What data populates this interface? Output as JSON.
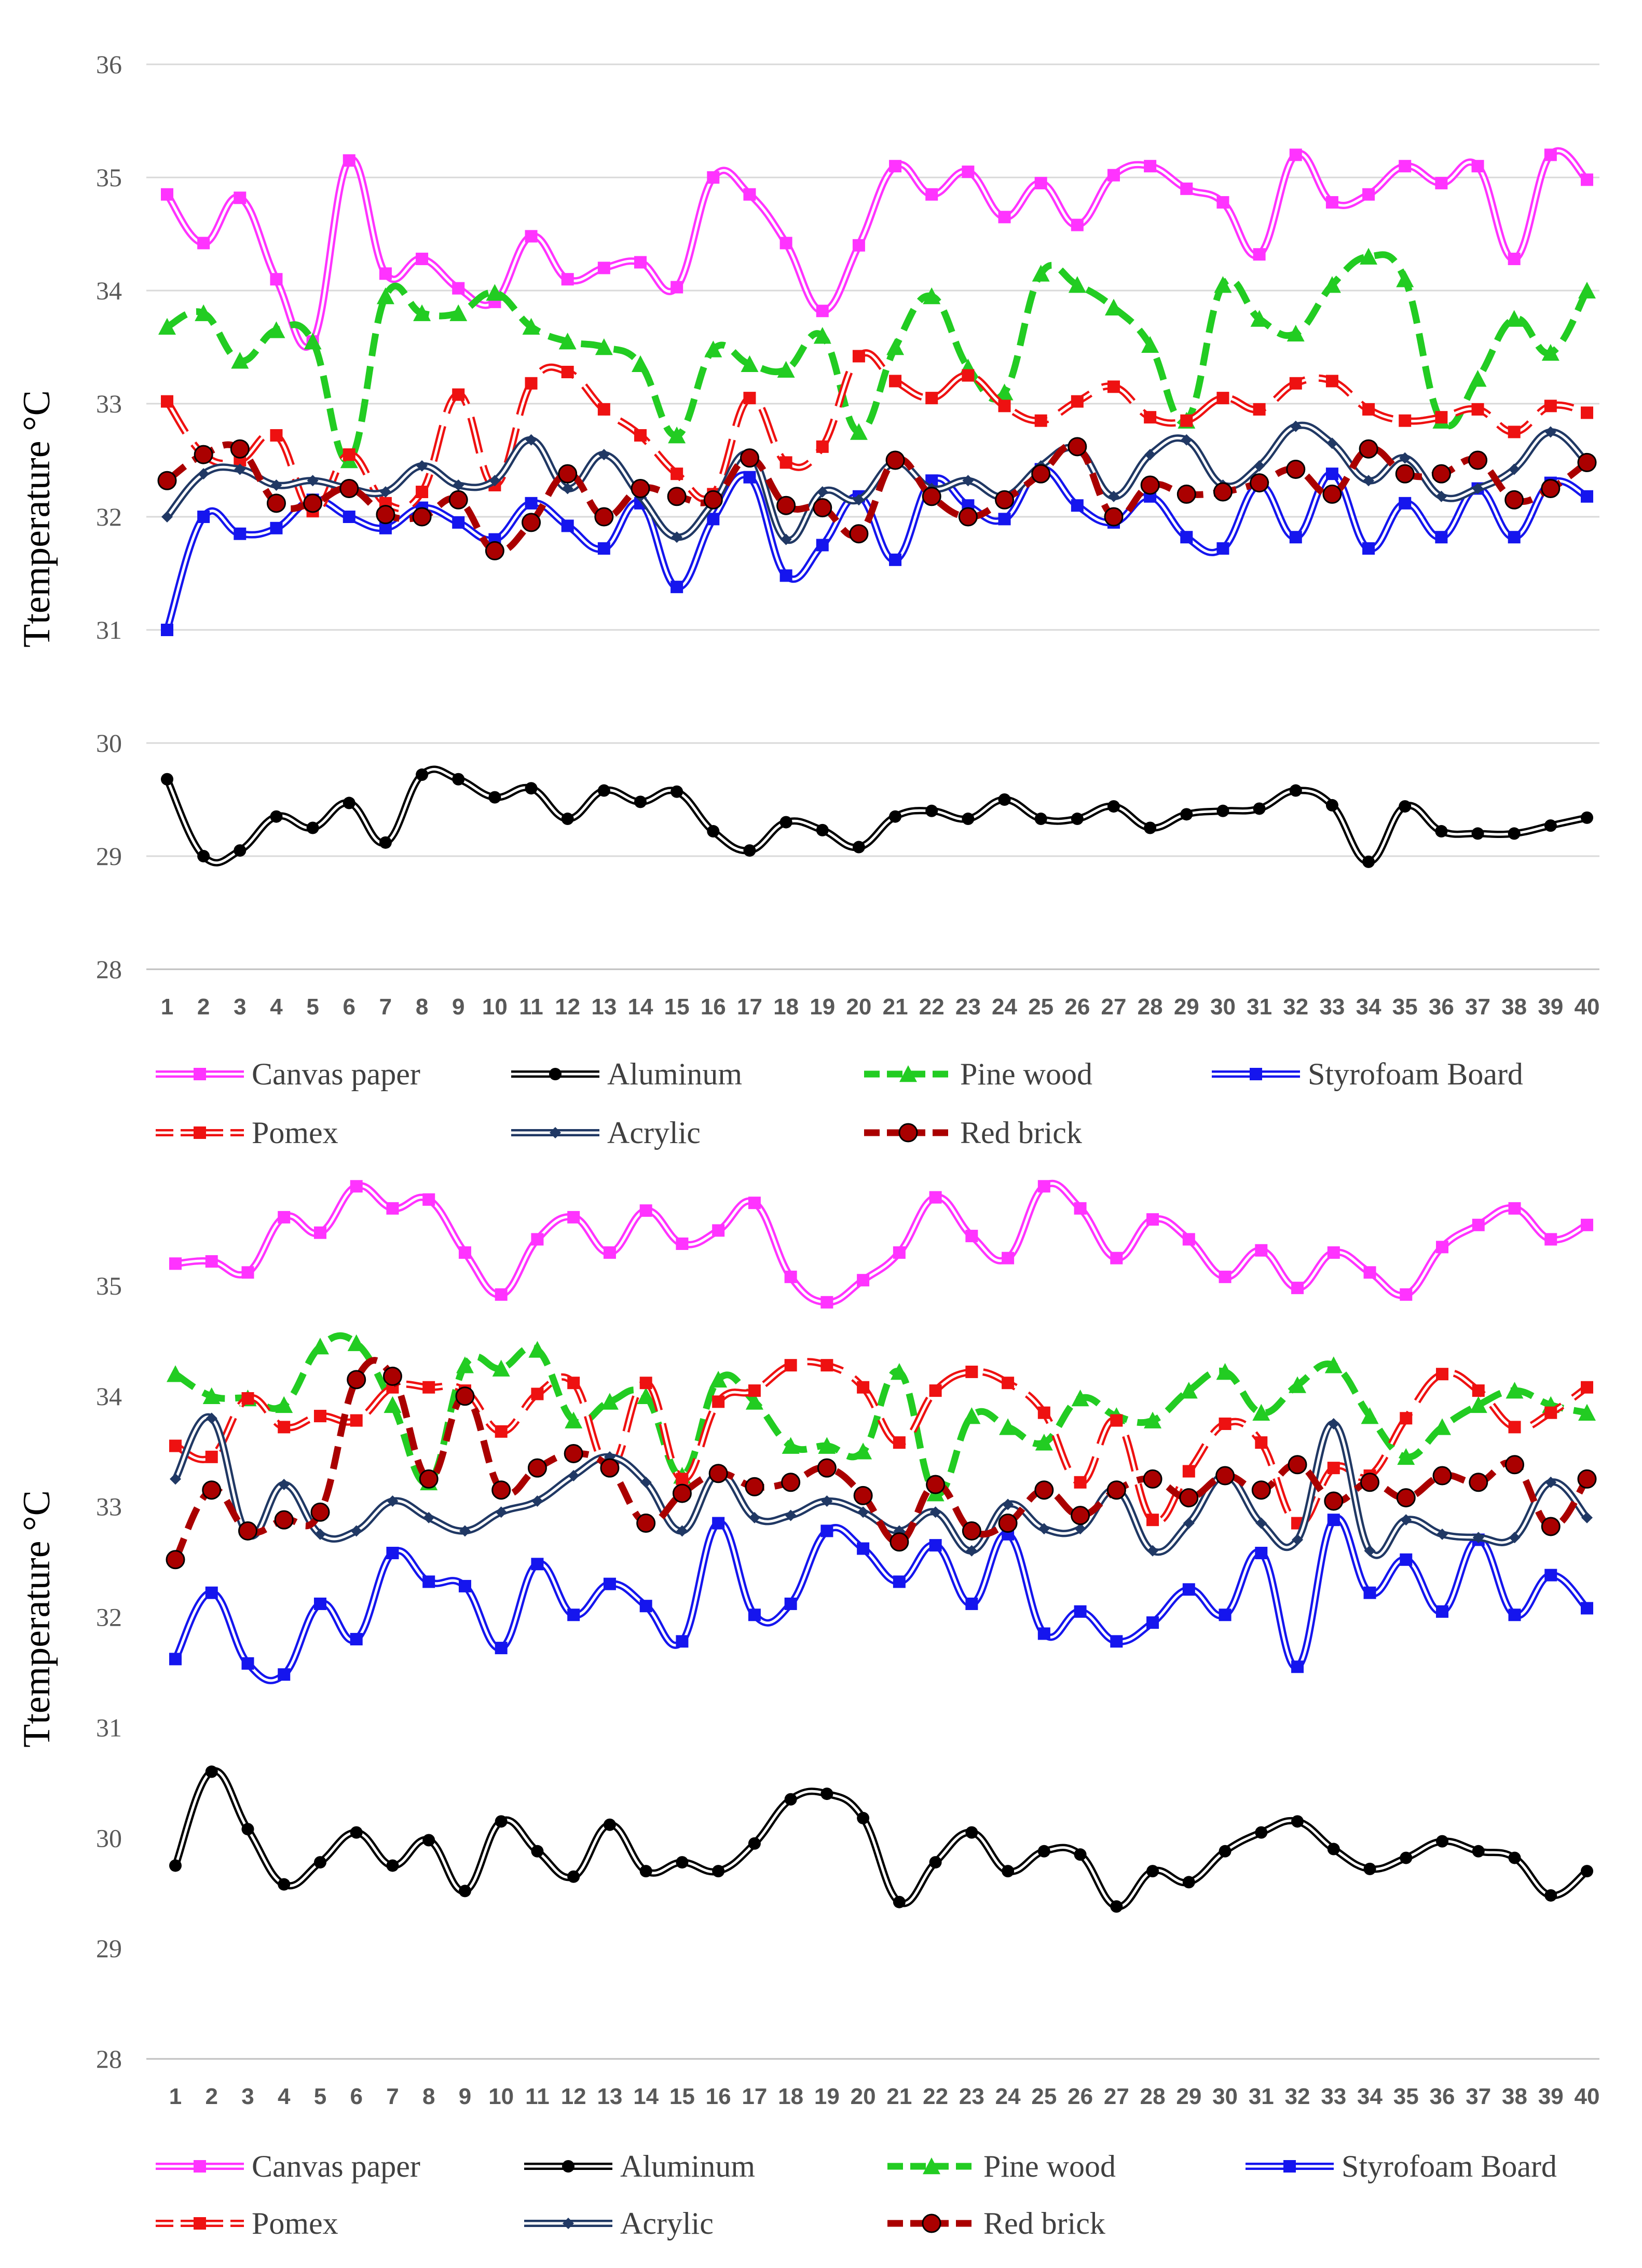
{
  "chart_data": [
    {
      "type": "line",
      "title": "",
      "xlabel": "",
      "ylabel": "Ttemperature °C",
      "ylim": [
        28,
        36
      ],
      "yticks": [
        28,
        29,
        30,
        31,
        32,
        33,
        34,
        35,
        36
      ],
      "grid": "horizontal",
      "legend_position": "bottom",
      "categories": [
        1,
        2,
        3,
        4,
        5,
        6,
        7,
        8,
        9,
        10,
        11,
        12,
        13,
        14,
        15,
        16,
        17,
        18,
        19,
        20,
        21,
        22,
        23,
        24,
        25,
        26,
        27,
        28,
        29,
        30,
        31,
        32,
        33,
        34,
        35,
        36,
        37,
        38,
        39,
        40
      ],
      "series": [
        {
          "name": "Canvas paper",
          "color": "#FF33FF",
          "style": "double",
          "marker": "square",
          "values": [
            34.85,
            34.42,
            34.82,
            34.1,
            33.55,
            35.15,
            34.15,
            34.28,
            34.02,
            33.9,
            34.48,
            34.1,
            34.2,
            34.25,
            34.03,
            35.0,
            34.85,
            34.42,
            33.82,
            34.4,
            35.1,
            34.85,
            35.05,
            34.65,
            34.95,
            34.58,
            35.02,
            35.1,
            34.9,
            34.78,
            34.32,
            35.2,
            34.78,
            34.85,
            35.1,
            34.95,
            35.1,
            34.28,
            35.2,
            34.98
          ]
        },
        {
          "name": "Aluminum",
          "color": "#000000",
          "style": "double",
          "marker": "circle",
          "values": [
            29.68,
            29.0,
            29.05,
            29.35,
            29.25,
            29.47,
            29.12,
            29.72,
            29.68,
            29.52,
            29.6,
            29.33,
            29.58,
            29.48,
            29.57,
            29.22,
            29.05,
            29.3,
            29.23,
            29.08,
            29.35,
            29.4,
            29.33,
            29.5,
            29.33,
            29.33,
            29.44,
            29.25,
            29.37,
            29.4,
            29.42,
            29.58,
            29.45,
            28.95,
            29.44,
            29.22,
            29.2,
            29.2,
            29.27,
            29.34
          ]
        },
        {
          "name": "Pine wood",
          "color": "#22CC22",
          "style": "dashed",
          "marker": "triangle",
          "values": [
            33.68,
            33.8,
            33.38,
            33.65,
            33.55,
            32.5,
            33.95,
            33.8,
            33.8,
            33.98,
            33.68,
            33.55,
            33.5,
            33.35,
            32.72,
            33.48,
            33.35,
            33.3,
            33.6,
            32.75,
            33.5,
            33.95,
            33.32,
            33.1,
            34.15,
            34.05,
            33.85,
            33.52,
            32.85,
            34.05,
            33.75,
            33.62,
            34.05,
            34.3,
            34.1,
            32.85,
            33.22,
            33.75,
            33.45,
            34.0
          ]
        },
        {
          "name": "Styrofoam Board",
          "color": "#1515EE",
          "style": "double",
          "marker": "square",
          "values": [
            31.0,
            32.0,
            31.85,
            31.9,
            32.15,
            32.0,
            31.9,
            32.08,
            31.95,
            31.8,
            32.12,
            31.92,
            31.72,
            32.12,
            31.38,
            31.98,
            32.35,
            31.48,
            31.75,
            32.18,
            31.62,
            32.32,
            32.1,
            31.98,
            32.42,
            32.1,
            31.95,
            32.18,
            31.82,
            31.72,
            32.28,
            31.82,
            32.38,
            31.72,
            32.12,
            31.82,
            32.25,
            31.82,
            32.3,
            32.18
          ]
        },
        {
          "name": "Pomex",
          "color": "#EE1111",
          "style": "double-dashed",
          "marker": "square",
          "values": [
            33.02,
            32.55,
            32.5,
            32.72,
            32.05,
            32.55,
            32.12,
            32.22,
            33.08,
            32.28,
            33.18,
            33.28,
            32.95,
            32.72,
            32.38,
            32.2,
            33.05,
            32.48,
            32.62,
            33.42,
            33.2,
            33.05,
            33.25,
            32.98,
            32.85,
            33.02,
            33.15,
            32.88,
            32.85,
            33.05,
            32.95,
            33.18,
            33.2,
            32.95,
            32.85,
            32.88,
            32.95,
            32.75,
            32.98,
            32.92
          ]
        },
        {
          "name": "Acrylic",
          "color": "#203864",
          "style": "double",
          "marker": "diamond",
          "values": [
            32.0,
            32.38,
            32.42,
            32.28,
            32.32,
            32.25,
            32.22,
            32.45,
            32.28,
            32.32,
            32.68,
            32.25,
            32.55,
            32.18,
            31.82,
            32.12,
            32.55,
            31.8,
            32.22,
            32.15,
            32.48,
            32.25,
            32.32,
            32.18,
            32.45,
            32.6,
            32.18,
            32.55,
            32.68,
            32.28,
            32.45,
            32.8,
            32.65,
            32.32,
            32.52,
            32.18,
            32.25,
            32.42,
            32.75,
            32.48
          ]
        },
        {
          "name": "Red brick",
          "color": "#AA0000",
          "style": "dashed",
          "marker": "circle",
          "values": [
            32.32,
            32.55,
            32.6,
            32.12,
            32.12,
            32.25,
            32.02,
            32.0,
            32.15,
            31.7,
            31.95,
            32.38,
            32.0,
            32.25,
            32.18,
            32.15,
            32.52,
            32.1,
            32.08,
            31.85,
            32.5,
            32.18,
            32.0,
            32.15,
            32.38,
            32.62,
            32.0,
            32.28,
            32.2,
            32.22,
            32.3,
            32.42,
            32.2,
            32.6,
            32.38,
            32.38,
            32.5,
            32.15,
            32.25,
            32.48
          ]
        }
      ]
    },
    {
      "type": "line",
      "title": "",
      "xlabel": "",
      "ylabel": "Ttemperature °C",
      "ylim": [
        28,
        36
      ],
      "yticks": [
        28,
        29,
        30,
        31,
        32,
        33,
        34,
        35
      ],
      "grid": "none",
      "legend_position": "bottom",
      "categories": [
        1,
        2,
        3,
        4,
        5,
        6,
        7,
        8,
        9,
        10,
        11,
        12,
        13,
        14,
        15,
        16,
        17,
        18,
        19,
        20,
        21,
        22,
        23,
        24,
        25,
        26,
        27,
        28,
        29,
        30,
        31,
        32,
        33,
        34,
        35,
        36,
        37,
        38,
        39,
        40
      ],
      "series": [
        {
          "name": "Canvas paper",
          "color": "#FF33FF",
          "style": "double",
          "marker": "square",
          "values": [
            35.2,
            35.22,
            35.12,
            35.62,
            35.48,
            35.9,
            35.7,
            35.78,
            35.3,
            34.92,
            35.42,
            35.62,
            35.3,
            35.68,
            35.38,
            35.5,
            35.75,
            35.08,
            34.85,
            35.05,
            35.3,
            35.8,
            35.45,
            35.25,
            35.9,
            35.7,
            35.25,
            35.6,
            35.42,
            35.08,
            35.32,
            34.98,
            35.3,
            35.12,
            34.92,
            35.35,
            35.55,
            35.7,
            35.42,
            35.55
          ]
        },
        {
          "name": "Aluminum",
          "color": "#000000",
          "style": "double",
          "marker": "circle",
          "values": [
            29.75,
            30.6,
            30.08,
            29.58,
            29.78,
            30.05,
            29.75,
            29.98,
            29.52,
            30.15,
            29.88,
            29.65,
            30.12,
            29.7,
            29.78,
            29.7,
            29.95,
            30.35,
            30.4,
            30.18,
            29.42,
            29.78,
            30.05,
            29.7,
            29.88,
            29.85,
            29.38,
            29.7,
            29.6,
            29.88,
            30.05,
            30.15,
            29.9,
            29.72,
            29.82,
            29.97,
            29.88,
            29.82,
            29.48,
            29.7
          ]
        },
        {
          "name": "Pine wood",
          "color": "#22CC22",
          "style": "dashed",
          "marker": "triangle",
          "values": [
            34.2,
            34.0,
            33.98,
            33.92,
            34.45,
            34.48,
            33.92,
            33.22,
            34.28,
            34.25,
            34.42,
            33.78,
            33.95,
            34.0,
            33.28,
            34.15,
            33.95,
            33.55,
            33.55,
            33.5,
            34.22,
            33.12,
            33.82,
            33.72,
            33.58,
            33.98,
            33.82,
            33.78,
            34.05,
            34.22,
            33.85,
            34.1,
            34.28,
            33.82,
            33.45,
            33.72,
            33.92,
            34.05,
            33.92,
            33.85
          ]
        },
        {
          "name": "Styrofoam Board",
          "color": "#1515EE",
          "style": "double",
          "marker": "square",
          "values": [
            31.62,
            32.22,
            31.58,
            31.48,
            32.12,
            31.8,
            32.58,
            32.32,
            32.28,
            31.72,
            32.48,
            32.02,
            32.3,
            32.1,
            31.78,
            32.85,
            32.02,
            32.12,
            32.78,
            32.62,
            32.32,
            32.65,
            32.12,
            32.75,
            31.85,
            32.05,
            31.78,
            31.95,
            32.25,
            32.02,
            32.58,
            31.55,
            32.88,
            32.22,
            32.52,
            32.05,
            32.7,
            32.02,
            32.38,
            32.08
          ]
        },
        {
          "name": "Pomex",
          "color": "#EE1111",
          "style": "double-dashed",
          "marker": "square",
          "values": [
            33.55,
            33.45,
            33.98,
            33.72,
            33.82,
            33.78,
            34.08,
            34.08,
            34.05,
            33.68,
            34.02,
            34.12,
            33.35,
            34.12,
            33.25,
            33.95,
            34.05,
            34.28,
            34.28,
            34.08,
            33.58,
            34.05,
            34.22,
            34.12,
            33.85,
            33.22,
            33.78,
            32.88,
            33.32,
            33.75,
            33.58,
            32.85,
            33.35,
            33.28,
            33.8,
            34.2,
            34.05,
            33.72,
            33.85,
            34.08
          ]
        },
        {
          "name": "Acrylic",
          "color": "#203864",
          "style": "double",
          "marker": "diamond",
          "values": [
            33.25,
            33.8,
            32.75,
            33.2,
            32.75,
            32.78,
            33.05,
            32.9,
            32.78,
            32.95,
            33.05,
            33.28,
            33.45,
            33.22,
            32.78,
            33.3,
            32.9,
            32.92,
            33.05,
            32.95,
            32.78,
            32.95,
            32.6,
            33.02,
            32.8,
            32.8,
            33.15,
            32.6,
            32.85,
            33.28,
            32.85,
            32.7,
            33.75,
            32.6,
            32.88,
            32.75,
            32.72,
            32.72,
            33.22,
            32.9
          ]
        },
        {
          "name": "Red brick",
          "color": "#AA0000",
          "style": "dashed",
          "marker": "circle",
          "values": [
            32.52,
            33.15,
            32.78,
            32.88,
            32.95,
            34.15,
            34.18,
            33.25,
            34.0,
            33.15,
            33.35,
            33.48,
            33.35,
            32.85,
            33.12,
            33.3,
            33.18,
            33.22,
            33.35,
            33.1,
            32.68,
            33.2,
            32.78,
            32.85,
            33.15,
            32.92,
            33.15,
            33.25,
            33.08,
            33.28,
            33.15,
            33.38,
            33.05,
            33.22,
            33.08,
            33.28,
            33.22,
            33.38,
            32.82,
            33.25
          ]
        }
      ]
    }
  ]
}
